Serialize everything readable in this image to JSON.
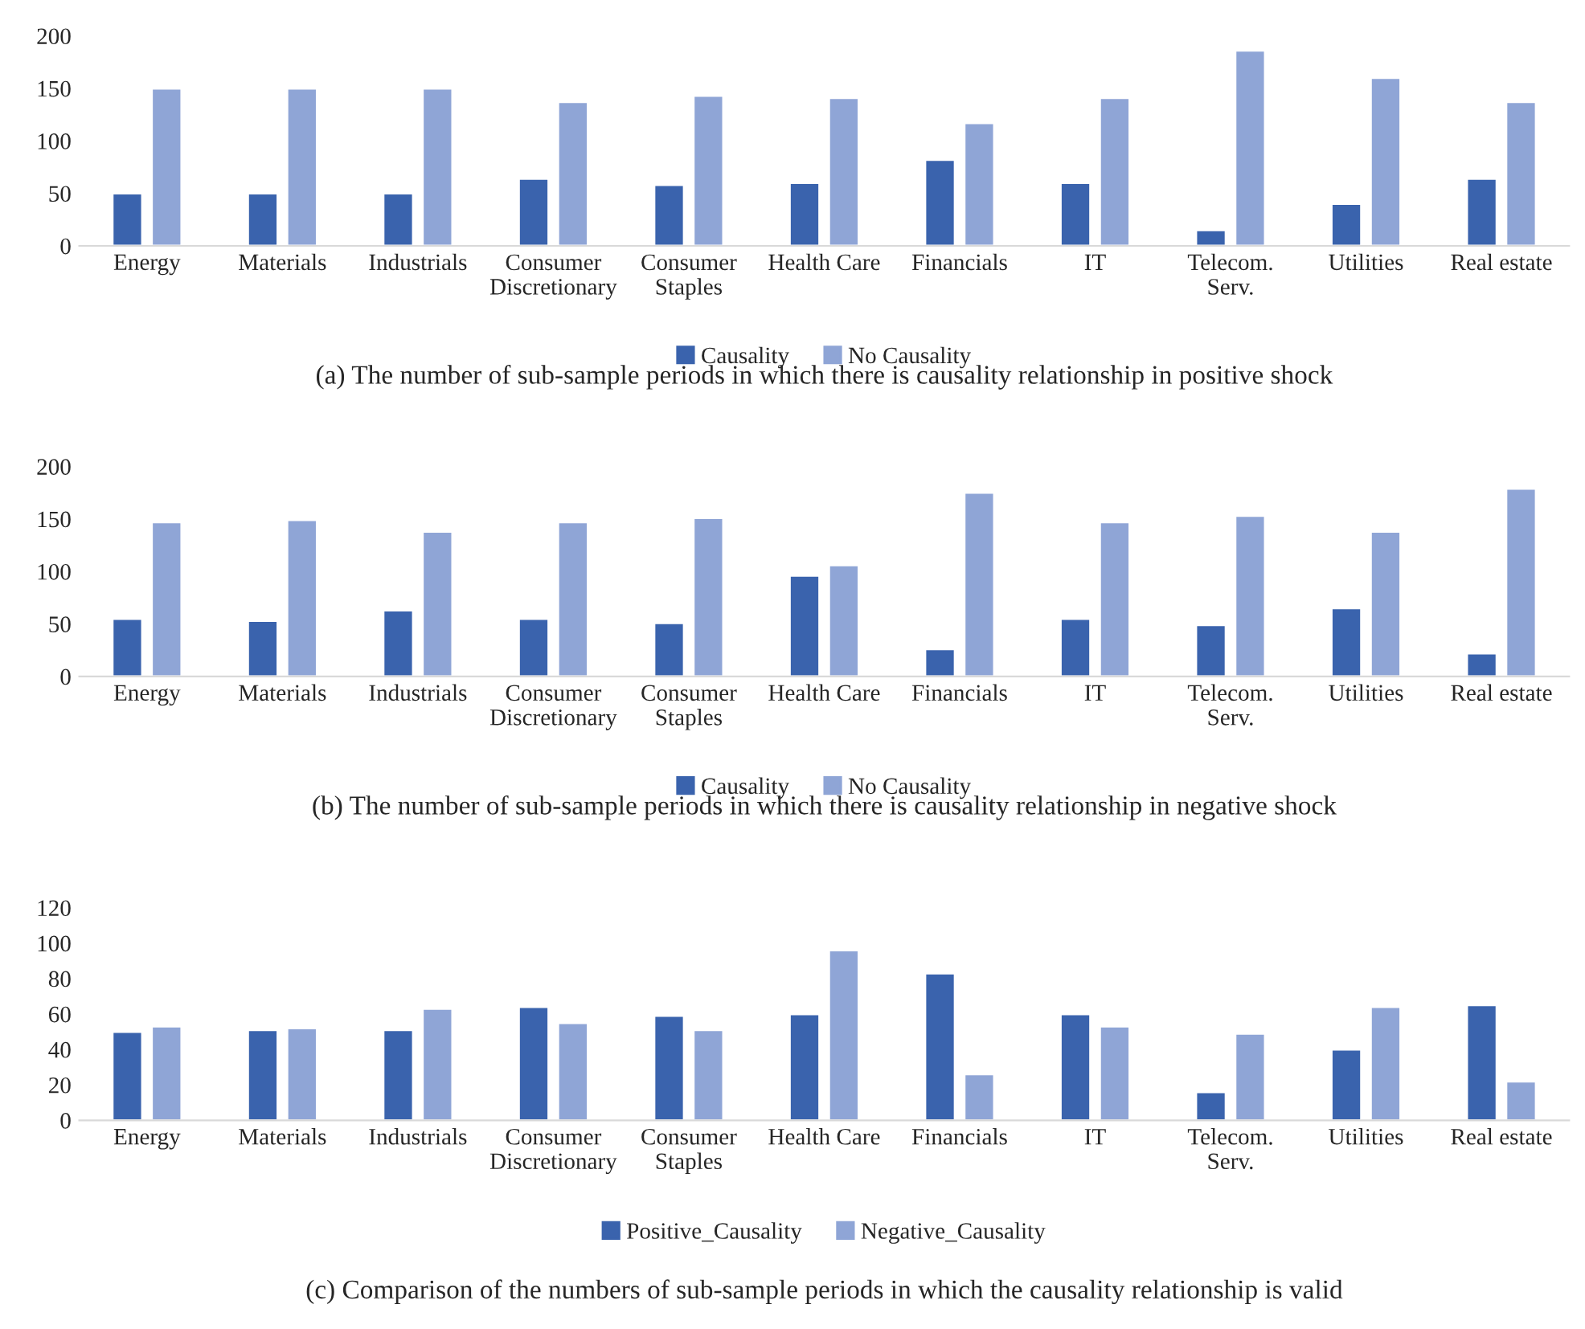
{
  "chart_data": [
    {
      "type": "bar",
      "title": "(a) The number of sub-sample periods in which there is causality relationship in positive shock",
      "categories": [
        "Energy",
        "Materials",
        "Industrials",
        "Consumer\nDiscretionary",
        "Consumer\nStaples",
        "Health Care",
        "Financials",
        "IT",
        "Telecom.\nServ.",
        "Utilities",
        "Real estate"
      ],
      "series": [
        {
          "name": "Causality",
          "color": "#3a63ad",
          "values": [
            50,
            50,
            50,
            64,
            58,
            60,
            82,
            60,
            15,
            40,
            64
          ]
        },
        {
          "name": "No Causality",
          "color": "#8fa5d6",
          "values": [
            150,
            150,
            150,
            137,
            143,
            141,
            117,
            141,
            186,
            160,
            137
          ]
        }
      ],
      "ylim": [
        0,
        200
      ],
      "yticks": [
        0,
        50,
        100,
        150,
        200
      ],
      "legend": "bottom"
    },
    {
      "type": "bar",
      "title": "(b) The number of sub-sample periods in which there is causality relationship in negative shock",
      "categories": [
        "Energy",
        "Materials",
        "Industrials",
        "Consumer\nDiscretionary",
        "Consumer\nStaples",
        "Health Care",
        "Financials",
        "IT",
        "Telecom.\nServ.",
        "Utilities",
        "Real estate"
      ],
      "series": [
        {
          "name": "Causality",
          "color": "#3a63ad",
          "values": [
            55,
            53,
            63,
            55,
            51,
            96,
            26,
            55,
            49,
            65,
            22
          ]
        },
        {
          "name": "No Causality",
          "color": "#8fa5d6",
          "values": [
            147,
            149,
            138,
            147,
            151,
            106,
            175,
            147,
            153,
            138,
            179
          ]
        }
      ],
      "ylim": [
        0,
        200
      ],
      "yticks": [
        0,
        50,
        100,
        150,
        200
      ],
      "legend": "bottom"
    },
    {
      "type": "bar",
      "title": "(c) Comparison of the numbers of sub-sample periods in which the causality relationship is valid",
      "categories": [
        "Energy",
        "Materials",
        "Industrials",
        "Consumer\nDiscretionary",
        "Consumer\nStaples",
        "Health Care",
        "Financials",
        "IT",
        "Telecom.\nServ.",
        "Utilities",
        "Real estate"
      ],
      "series": [
        {
          "name": "Positive_Causality",
          "color": "#3a63ad",
          "values": [
            50,
            51,
            51,
            64,
            59,
            60,
            83,
            60,
            16,
            40,
            65
          ]
        },
        {
          "name": "Negative_Causality",
          "color": "#8fa5d6",
          "values": [
            53,
            52,
            63,
            55,
            51,
            96,
            26,
            53,
            49,
            64,
            22
          ]
        }
      ],
      "ylim": [
        0,
        120
      ],
      "yticks": [
        0,
        20,
        40,
        60,
        80,
        100,
        120
      ],
      "legend": "bottom"
    }
  ]
}
